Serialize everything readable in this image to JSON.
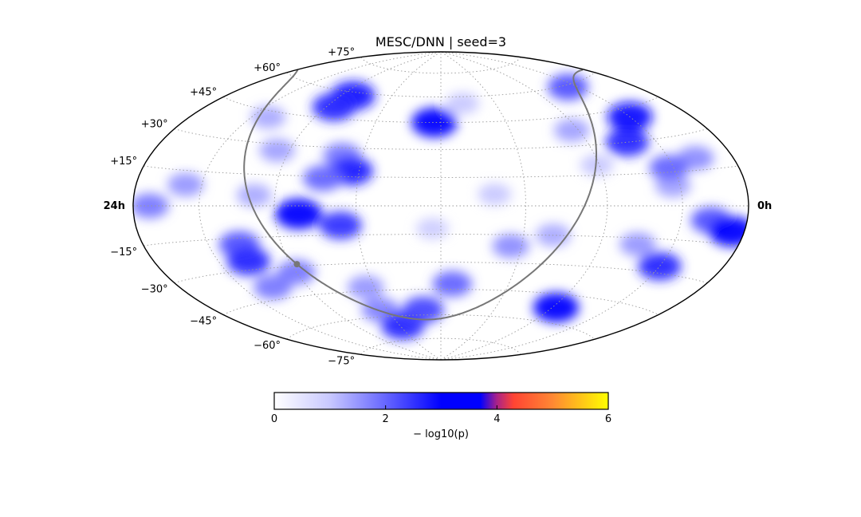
{
  "chart_data": {
    "type": "heatmap",
    "projection": "hammer-aitoff",
    "title": "MESC/DNN | seed=3",
    "ra_labels": {
      "left": "24h",
      "right": "0h"
    },
    "dec_labels": [
      "+75°",
      "+60°",
      "+45°",
      "+30°",
      "+15°",
      "−15°",
      "−30°",
      "−45°",
      "−60°",
      "−75°"
    ],
    "dec_values": [
      75,
      60,
      45,
      30,
      15,
      -15,
      -30,
      -45,
      -60,
      -75
    ],
    "grid": true,
    "ra_grid_hours": [
      3,
      6,
      9,
      12,
      15,
      18,
      21
    ],
    "dec_grid_degrees": [
      -75,
      -60,
      -45,
      -30,
      -15,
      0,
      15,
      30,
      45,
      60,
      75
    ],
    "colorbar": {
      "label": "− log10(p)",
      "ticks": [
        0,
        2,
        4,
        6
      ],
      "range": [
        0,
        6
      ],
      "stops": [
        {
          "v": 0,
          "color": "#ffffff"
        },
        {
          "v": 1,
          "color": "#c8c8ff"
        },
        {
          "v": 2,
          "color": "#6666ff"
        },
        {
          "v": 3,
          "color": "#0000ff"
        },
        {
          "v": 3.7,
          "color": "#0000ff"
        },
        {
          "v": 4,
          "color": "#aa2288"
        },
        {
          "v": 4.3,
          "color": "#ff4433"
        },
        {
          "v": 5,
          "color": "#ff8833"
        },
        {
          "v": 6,
          "color": "#ffff00"
        }
      ]
    },
    "galactic_plane": {
      "color": "#777777",
      "center_dot": {
        "ra_hours": 17.76,
        "dec": -29.0
      }
    },
    "hotspots": [
      {
        "ra_hours": 17.3,
        "dec": 58,
        "value": 2.8
      },
      {
        "ra_hours": 17.6,
        "dec": 51,
        "value": 2.6
      },
      {
        "ra_hours": 20.2,
        "dec": 42,
        "value": 1.3
      },
      {
        "ra_hours": 15.8,
        "dec": 26,
        "value": 1.8
      },
      {
        "ra_hours": 15.3,
        "dec": 18,
        "value": 2.7
      },
      {
        "ra_hours": 16.3,
        "dec": 14,
        "value": 2.0
      },
      {
        "ra_hours": 12.3,
        "dec": 45,
        "value": 3.0
      },
      {
        "ra_hours": 10.8,
        "dec": 56,
        "value": 1.0
      },
      {
        "ra_hours": 18.5,
        "dec": 27,
        "value": 1.4
      },
      {
        "ra_hours": 17.1,
        "dec": -4,
        "value": 3.2
      },
      {
        "ra_hours": 15.6,
        "dec": -10,
        "value": 2.5
      },
      {
        "ra_hours": 18.8,
        "dec": 5,
        "value": 1.3
      },
      {
        "ra_hours": 21.7,
        "dec": 9,
        "value": 1.5
      },
      {
        "ra_hours": 23.2,
        "dec": 0,
        "value": 1.8
      },
      {
        "ra_hours": 19.7,
        "dec": -18,
        "value": 2.2
      },
      {
        "ra_hours": 19.7,
        "dec": -26,
        "value": 2.6
      },
      {
        "ra_hours": 19.6,
        "dec": -39,
        "value": 1.8
      },
      {
        "ra_hours": 18.0,
        "dec": -33,
        "value": 1.8
      },
      {
        "ra_hours": 15.4,
        "dec": -43,
        "value": 1.5
      },
      {
        "ra_hours": 15.4,
        "dec": -56,
        "value": 1.7
      },
      {
        "ra_hours": 14.8,
        "dec": -66,
        "value": 2.6
      },
      {
        "ra_hours": 13.0,
        "dec": -57,
        "value": 2.3
      },
      {
        "ra_hours": 11.5,
        "dec": -42,
        "value": 2.0
      },
      {
        "ra_hours": 9.4,
        "dec": -21,
        "value": 1.6
      },
      {
        "ra_hours": 7.9,
        "dec": -15,
        "value": 1.3
      },
      {
        "ra_hours": 5.8,
        "dec": -52,
        "value": 3.0
      },
      {
        "ra_hours": 3.0,
        "dec": -27,
        "value": 2.6
      },
      {
        "ra_hours": 1.7,
        "dec": -6,
        "value": 2.2
      },
      {
        "ra_hours": 0.6,
        "dec": -10,
        "value": 3.1
      },
      {
        "ra_hours": 3.3,
        "dec": 9,
        "value": 1.4
      },
      {
        "ra_hours": 4.3,
        "dec": 30,
        "value": 2.6
      },
      {
        "ra_hours": 3.0,
        "dec": 41,
        "value": 2.9
      },
      {
        "ra_hours": 1.8,
        "dec": 20,
        "value": 1.6
      },
      {
        "ra_hours": 3.2,
        "dec": 17,
        "value": 2.0
      },
      {
        "ra_hours": 3.6,
        "dec": 59,
        "value": 2.2
      },
      {
        "ra_hours": 6.3,
        "dec": 38,
        "value": 1.4
      },
      {
        "ra_hours": 6.1,
        "dec": 20,
        "value": 1.0
      },
      {
        "ra_hours": 10.1,
        "dec": 6,
        "value": 1.0
      },
      {
        "ra_hours": 12.3,
        "dec": -12,
        "value": 0.9
      },
      {
        "ra_hours": 4.5,
        "dec": -18,
        "value": 1.5
      }
    ]
  }
}
